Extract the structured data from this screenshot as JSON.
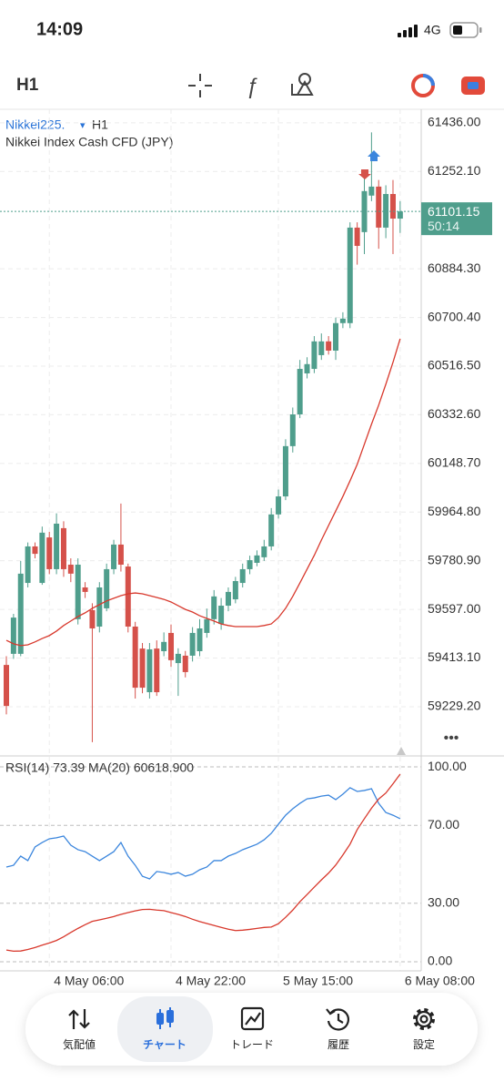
{
  "status_bar": {
    "time": "14:09",
    "network": "4G"
  },
  "toolbar": {
    "timeframe": "H1"
  },
  "chart_data": [
    {
      "type": "candlestick",
      "symbol": "Nikkei225.",
      "timeframe": "H1",
      "description": "Nikkei Index Cash CFD (JPY)",
      "categories": [
        null,
        null,
        null,
        null,
        null,
        null,
        "4 May 06:00",
        null,
        null,
        null,
        null,
        null,
        null,
        null,
        null,
        null,
        null,
        null,
        null,
        null,
        null,
        null,
        null,
        "4 May 22:00",
        null,
        null,
        null,
        null,
        null,
        null,
        null,
        null,
        null,
        null,
        null,
        null,
        null,
        null,
        "5 May 15:00",
        null,
        null,
        null,
        null,
        null,
        null,
        null,
        null,
        null,
        null,
        null,
        null,
        null,
        null,
        null,
        null,
        "6 May 08:00"
      ],
      "open": [
        59387,
        59429,
        59429,
        59697,
        59835,
        59697,
        59869,
        59749,
        59904,
        59766,
        59560,
        59680,
        59594,
        59532,
        59601,
        59749,
        59842,
        59759,
        59532,
        59449,
        59284,
        59449,
        59439,
        59508,
        59394,
        59422,
        59422,
        59439,
        59508,
        59560,
        59542,
        59611,
        59635,
        59697,
        59749,
        59773,
        59794,
        59835,
        59956,
        60024,
        60214,
        60334,
        60489,
        60506,
        60558,
        60610,
        60575,
        60679,
        60679,
        61040,
        61023,
        61161,
        61195,
        61040,
        61167,
        61074
      ],
      "high": [
        59420,
        59580,
        59780,
        59850,
        59850,
        59910,
        59890,
        59960,
        59930,
        59790,
        59790,
        59700,
        59620,
        59700,
        59770,
        59860,
        59997,
        59770,
        59550,
        59470,
        59470,
        59480,
        59510,
        59540,
        59450,
        59440,
        59530,
        59560,
        59600,
        59670,
        59640,
        59680,
        59720,
        59770,
        59800,
        59820,
        59860,
        59980,
        60050,
        60240,
        60360,
        60540,
        60550,
        60630,
        60640,
        60630,
        60700,
        60720,
        61060,
        61060,
        61260,
        61400,
        61220,
        61200,
        61220,
        61140
      ],
      "low": [
        59200,
        59410,
        59420,
        59680,
        59790,
        59690,
        59730,
        59730,
        59720,
        59700,
        59540,
        59640,
        59095,
        59510,
        59590,
        59730,
        59740,
        59510,
        59260,
        59280,
        59260,
        59270,
        59420,
        59380,
        59270,
        59340,
        59400,
        59420,
        59490,
        59540,
        59520,
        59590,
        59620,
        59680,
        59730,
        59760,
        59780,
        59820,
        59940,
        60010,
        60190,
        60320,
        60470,
        60490,
        60540,
        60560,
        60540,
        60660,
        60660,
        60900,
        60940,
        61140,
        60960,
        61000,
        60940,
        61020
      ],
      "close": [
        59232,
        59566,
        59732,
        59835,
        59807,
        59887,
        59749,
        59921,
        59749,
        59732,
        59766,
        59663,
        59525,
        59680,
        59749,
        59842,
        59766,
        59532,
        59301,
        59301,
        59446,
        59284,
        59474,
        59405,
        59429,
        59360,
        59508,
        59525,
        59560,
        59646,
        59611,
        59663,
        59704,
        59749,
        59783,
        59801,
        59835,
        59956,
        60024,
        60214,
        60334,
        60506,
        60524,
        60610,
        60610,
        60575,
        60679,
        60696,
        61040,
        60971,
        61178,
        61195,
        61040,
        61167,
        61074,
        61101.15
      ],
      "up_color": "#4f9e8c",
      "down_color": "#d5514a",
      "overlay": {
        "color": "#d8382c",
        "values": [
          59480,
          59467,
          59460,
          59463,
          59474,
          59487,
          59498,
          59515,
          59536,
          59553,
          59570,
          59584,
          59601,
          59615,
          59629,
          59639,
          59649,
          59656,
          59659,
          59656,
          59649,
          59642,
          59635,
          59625,
          59611,
          59597,
          59587,
          59573,
          59563,
          59553,
          59542,
          59536,
          59532,
          59532,
          59532,
          59532,
          59536,
          59542,
          59566,
          59601,
          59646,
          59697,
          59749,
          59801,
          59859,
          59914,
          59969,
          60024,
          60083,
          60145,
          60221,
          60297,
          60369,
          60448,
          60531,
          60620
        ]
      },
      "current_price": 61101.15,
      "countdown": "50:14",
      "ylim": [
        59050,
        61470
      ],
      "yticks": [
        {
          "value": 61436,
          "label": "61436.00"
        },
        {
          "value": 61252.1,
          "label": "61252.10"
        },
        {
          "value": 60884.3,
          "label": "60884.30"
        },
        {
          "value": 60700.4,
          "label": "60700.40"
        },
        {
          "value": 60516.5,
          "label": "60516.50"
        },
        {
          "value": 60332.6,
          "label": "60332.60"
        },
        {
          "value": 60148.7,
          "label": "60148.70"
        },
        {
          "value": 59964.8,
          "label": "59964.80"
        },
        {
          "value": 59780.9,
          "label": "59780.90"
        },
        {
          "value": 59597,
          "label": "59597.00"
        },
        {
          "value": 59413.1,
          "label": "59413.10"
        },
        {
          "value": 59229.2,
          "label": "59229.20"
        }
      ],
      "grid": true
    },
    {
      "type": "line",
      "title": "RSI(14) 73.39 MA(20) 60618.900",
      "series": [
        {
          "color": "#3b86dd",
          "values": [
            48.6,
            49.5,
            54.2,
            51.9,
            58.9,
            61.2,
            63.1,
            63.6,
            64.5,
            59.8,
            57.5,
            56.5,
            54.2,
            51.9,
            54.2,
            56.5,
            61.2,
            54.2,
            49.5,
            43.9,
            42.5,
            46.3,
            45.8,
            44.9,
            45.8,
            43.9,
            44.9,
            47.2,
            48.6,
            51.9,
            51.9,
            54.2,
            55.6,
            57.5,
            58.9,
            60.3,
            62.6,
            65.9,
            70.6,
            75.2,
            78.5,
            81.3,
            83.6,
            84.1,
            85.0,
            85.5,
            83.2,
            86.0,
            89.3,
            87.4,
            87.9,
            88.8,
            81.3,
            76.6,
            75.2,
            73.39
          ]
        },
        {
          "color": "#d8382c",
          "values": [
            6.0,
            5.4,
            5.5,
            6.3,
            7.3,
            8.5,
            9.6,
            10.9,
            12.8,
            15.0,
            17.1,
            19.0,
            20.7,
            21.5,
            22.3,
            23.2,
            24.3,
            25.2,
            26.1,
            26.8,
            26.9,
            26.5,
            26.2,
            25.2,
            24.3,
            23.2,
            21.8,
            20.6,
            19.6,
            18.6,
            17.6,
            16.7,
            16.0,
            16.2,
            16.6,
            17.1,
            17.6,
            17.8,
            19.5,
            22.8,
            26.5,
            30.8,
            34.5,
            38.3,
            42.0,
            45.5,
            49.6,
            54.8,
            60.3,
            67.8,
            73.4,
            78.8,
            83.5,
            86.6,
            91.3,
            96.3
          ]
        }
      ],
      "ylim": [
        -4.7,
        104.7
      ],
      "yticks": [
        {
          "value": 100,
          "label": "100.00"
        },
        {
          "value": 70,
          "label": "70.00"
        },
        {
          "value": 30,
          "label": "30.00"
        },
        {
          "value": 0,
          "label": "0.00"
        }
      ],
      "grid": true
    }
  ],
  "tab_bar": {
    "tabs": [
      "気配値",
      "チャート",
      "トレード",
      "履歴",
      "設定"
    ],
    "active": 1
  }
}
